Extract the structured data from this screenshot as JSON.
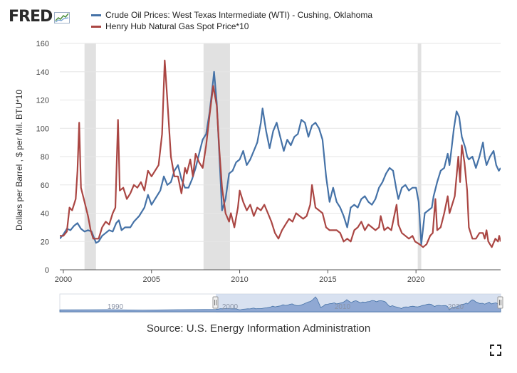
{
  "header": {
    "logo_text": "FRED",
    "logo_icon": "trend-graph-icon"
  },
  "legend": [
    {
      "label": "Crude Oil Prices: West Texas Intermediate (WTI) - Cushing, Oklahoma",
      "color": "#4572a7"
    },
    {
      "label": "Henry Hub Natural Gas Spot Price*10",
      "color": "#aa4643"
    }
  ],
  "source": "Source: U.S. Energy Information Administration",
  "navigator": {
    "tick_labels": [
      "1990",
      "2000",
      "2010",
      "2020"
    ]
  },
  "chart_data": {
    "type": "line",
    "title": "",
    "xlabel": "",
    "ylabel": "Dollars per Barrel , $ per Mil. BTU*10",
    "xlim": [
      1999.8,
      2024.8
    ],
    "ylim": [
      0,
      160
    ],
    "x_ticks": [
      2000,
      2005,
      2010,
      2015,
      2020
    ],
    "x_tick_labels": [
      "2000",
      "2005",
      "2010",
      "2015",
      "2020"
    ],
    "y_ticks": [
      0,
      20,
      40,
      60,
      80,
      100,
      120,
      140,
      160
    ],
    "y_tick_labels": [
      "0",
      "20",
      "40",
      "60",
      "80",
      "100",
      "120",
      "140",
      "160"
    ],
    "recessions": [
      [
        2001.2,
        2001.85
      ],
      [
        2007.95,
        2009.45
      ],
      [
        2020.1,
        2020.3
      ]
    ],
    "series": [
      {
        "name": "Crude Oil Prices: West Texas Intermediate (WTI) - Cushing, Oklahoma",
        "color": "#4572a7",
        "points": [
          [
            1999.8,
            22
          ],
          [
            2000.0,
            25
          ],
          [
            2000.2,
            29
          ],
          [
            2000.4,
            28
          ],
          [
            2000.6,
            31
          ],
          [
            2000.8,
            33
          ],
          [
            2001.0,
            29
          ],
          [
            2001.2,
            27
          ],
          [
            2001.4,
            28
          ],
          [
            2001.6,
            27
          ],
          [
            2001.85,
            19
          ],
          [
            2002.0,
            20
          ],
          [
            2002.2,
            24
          ],
          [
            2002.4,
            26
          ],
          [
            2002.6,
            28
          ],
          [
            2002.8,
            27
          ],
          [
            2003.0,
            33
          ],
          [
            2003.15,
            35
          ],
          [
            2003.3,
            28
          ],
          [
            2003.5,
            30
          ],
          [
            2003.8,
            30
          ],
          [
            2004.0,
            34
          ],
          [
            2004.3,
            38
          ],
          [
            2004.6,
            44
          ],
          [
            2004.8,
            53
          ],
          [
            2005.0,
            46
          ],
          [
            2005.3,
            52
          ],
          [
            2005.5,
            56
          ],
          [
            2005.7,
            66
          ],
          [
            2005.9,
            60
          ],
          [
            2006.1,
            62
          ],
          [
            2006.3,
            70
          ],
          [
            2006.5,
            74
          ],
          [
            2006.7,
            64
          ],
          [
            2006.9,
            58
          ],
          [
            2007.1,
            58
          ],
          [
            2007.3,
            64
          ],
          [
            2007.5,
            72
          ],
          [
            2007.7,
            82
          ],
          [
            2007.9,
            92
          ],
          [
            2008.1,
            96
          ],
          [
            2008.3,
            112
          ],
          [
            2008.5,
            134
          ],
          [
            2008.55,
            140
          ],
          [
            2008.7,
            118
          ],
          [
            2008.9,
            68
          ],
          [
            2009.0,
            42
          ],
          [
            2009.2,
            50
          ],
          [
            2009.4,
            68
          ],
          [
            2009.6,
            70
          ],
          [
            2009.8,
            76
          ],
          [
            2010.0,
            78
          ],
          [
            2010.2,
            84
          ],
          [
            2010.4,
            74
          ],
          [
            2010.6,
            78
          ],
          [
            2010.8,
            84
          ],
          [
            2011.0,
            90
          ],
          [
            2011.2,
            104
          ],
          [
            2011.3,
            114
          ],
          [
            2011.5,
            98
          ],
          [
            2011.7,
            86
          ],
          [
            2011.9,
            98
          ],
          [
            2012.1,
            104
          ],
          [
            2012.3,
            94
          ],
          [
            2012.5,
            84
          ],
          [
            2012.7,
            92
          ],
          [
            2012.9,
            88
          ],
          [
            2013.1,
            94
          ],
          [
            2013.3,
            96
          ],
          [
            2013.5,
            106
          ],
          [
            2013.7,
            104
          ],
          [
            2013.9,
            94
          ],
          [
            2014.1,
            102
          ],
          [
            2014.3,
            104
          ],
          [
            2014.5,
            100
          ],
          [
            2014.7,
            92
          ],
          [
            2014.9,
            66
          ],
          [
            2015.1,
            48
          ],
          [
            2015.3,
            58
          ],
          [
            2015.5,
            48
          ],
          [
            2015.7,
            44
          ],
          [
            2015.9,
            38
          ],
          [
            2016.1,
            30
          ],
          [
            2016.3,
            44
          ],
          [
            2016.5,
            46
          ],
          [
            2016.7,
            44
          ],
          [
            2016.9,
            50
          ],
          [
            2017.1,
            52
          ],
          [
            2017.3,
            48
          ],
          [
            2017.5,
            46
          ],
          [
            2017.7,
            50
          ],
          [
            2017.9,
            58
          ],
          [
            2018.1,
            62
          ],
          [
            2018.3,
            68
          ],
          [
            2018.5,
            72
          ],
          [
            2018.7,
            70
          ],
          [
            2018.9,
            56
          ],
          [
            2019.0,
            50
          ],
          [
            2019.2,
            58
          ],
          [
            2019.4,
            60
          ],
          [
            2019.6,
            56
          ],
          [
            2019.8,
            58
          ],
          [
            2020.0,
            58
          ],
          [
            2020.15,
            48
          ],
          [
            2020.3,
            18
          ],
          [
            2020.5,
            40
          ],
          [
            2020.7,
            42
          ],
          [
            2020.9,
            44
          ],
          [
            2021.0,
            52
          ],
          [
            2021.2,
            62
          ],
          [
            2021.4,
            70
          ],
          [
            2021.6,
            72
          ],
          [
            2021.8,
            82
          ],
          [
            2021.9,
            74
          ],
          [
            2022.0,
            84
          ],
          [
            2022.15,
            100
          ],
          [
            2022.3,
            112
          ],
          [
            2022.45,
            108
          ],
          [
            2022.6,
            94
          ],
          [
            2022.8,
            86
          ],
          [
            2022.9,
            80
          ],
          [
            2023.0,
            78
          ],
          [
            2023.2,
            80
          ],
          [
            2023.4,
            72
          ],
          [
            2023.6,
            80
          ],
          [
            2023.8,
            90
          ],
          [
            2023.9,
            80
          ],
          [
            2024.0,
            74
          ],
          [
            2024.2,
            80
          ],
          [
            2024.4,
            84
          ],
          [
            2024.55,
            74
          ],
          [
            2024.7,
            70
          ],
          [
            2024.8,
            72
          ]
        ]
      },
      {
        "name": "Henry Hub Natural Gas Spot Price*10",
        "color": "#aa4643",
        "points": [
          [
            1999.8,
            24
          ],
          [
            2000.0,
            24
          ],
          [
            2000.2,
            27
          ],
          [
            2000.35,
            44
          ],
          [
            2000.5,
            42
          ],
          [
            2000.7,
            50
          ],
          [
            2000.8,
            70
          ],
          [
            2000.9,
            104
          ],
          [
            2001.0,
            58
          ],
          [
            2001.2,
            48
          ],
          [
            2001.4,
            38
          ],
          [
            2001.55,
            28
          ],
          [
            2001.7,
            22
          ],
          [
            2001.85,
            22
          ],
          [
            2002.0,
            22
          ],
          [
            2002.2,
            30
          ],
          [
            2002.4,
            34
          ],
          [
            2002.6,
            32
          ],
          [
            2002.8,
            40
          ],
          [
            2002.95,
            44
          ],
          [
            2003.1,
            106
          ],
          [
            2003.2,
            56
          ],
          [
            2003.4,
            58
          ],
          [
            2003.6,
            50
          ],
          [
            2003.8,
            54
          ],
          [
            2004.0,
            60
          ],
          [
            2004.2,
            58
          ],
          [
            2004.4,
            62
          ],
          [
            2004.6,
            56
          ],
          [
            2004.8,
            70
          ],
          [
            2005.0,
            66
          ],
          [
            2005.2,
            70
          ],
          [
            2005.4,
            74
          ],
          [
            2005.6,
            96
          ],
          [
            2005.75,
            148
          ],
          [
            2005.9,
            120
          ],
          [
            2006.1,
            80
          ],
          [
            2006.3,
            66
          ],
          [
            2006.5,
            66
          ],
          [
            2006.7,
            54
          ],
          [
            2006.9,
            72
          ],
          [
            2007.0,
            68
          ],
          [
            2007.2,
            78
          ],
          [
            2007.35,
            66
          ],
          [
            2007.5,
            82
          ],
          [
            2007.7,
            76
          ],
          [
            2007.9,
            72
          ],
          [
            2008.1,
            88
          ],
          [
            2008.3,
            110
          ],
          [
            2008.5,
            130
          ],
          [
            2008.7,
            116
          ],
          [
            2008.85,
            84
          ],
          [
            2009.0,
            58
          ],
          [
            2009.2,
            40
          ],
          [
            2009.4,
            34
          ],
          [
            2009.5,
            40
          ],
          [
            2009.7,
            30
          ],
          [
            2009.9,
            44
          ],
          [
            2010.0,
            56
          ],
          [
            2010.2,
            48
          ],
          [
            2010.4,
            42
          ],
          [
            2010.6,
            46
          ],
          [
            2010.8,
            38
          ],
          [
            2011.0,
            44
          ],
          [
            2011.2,
            42
          ],
          [
            2011.4,
            46
          ],
          [
            2011.6,
            40
          ],
          [
            2011.8,
            34
          ],
          [
            2012.0,
            26
          ],
          [
            2012.2,
            22
          ],
          [
            2012.4,
            28
          ],
          [
            2012.6,
            32
          ],
          [
            2012.8,
            36
          ],
          [
            2013.0,
            34
          ],
          [
            2013.2,
            40
          ],
          [
            2013.4,
            38
          ],
          [
            2013.6,
            36
          ],
          [
            2013.8,
            38
          ],
          [
            2014.0,
            46
          ],
          [
            2014.1,
            60
          ],
          [
            2014.3,
            44
          ],
          [
            2014.5,
            42
          ],
          [
            2014.7,
            40
          ],
          [
            2014.9,
            30
          ],
          [
            2015.1,
            28
          ],
          [
            2015.3,
            28
          ],
          [
            2015.5,
            28
          ],
          [
            2015.7,
            26
          ],
          [
            2015.9,
            20
          ],
          [
            2016.1,
            22
          ],
          [
            2016.3,
            20
          ],
          [
            2016.5,
            28
          ],
          [
            2016.7,
            30
          ],
          [
            2016.9,
            34
          ],
          [
            2017.1,
            28
          ],
          [
            2017.3,
            32
          ],
          [
            2017.5,
            30
          ],
          [
            2017.7,
            28
          ],
          [
            2017.9,
            30
          ],
          [
            2018.0,
            38
          ],
          [
            2018.2,
            28
          ],
          [
            2018.4,
            30
          ],
          [
            2018.6,
            28
          ],
          [
            2018.8,
            40
          ],
          [
            2018.9,
            46
          ],
          [
            2019.0,
            32
          ],
          [
            2019.2,
            26
          ],
          [
            2019.4,
            24
          ],
          [
            2019.6,
            22
          ],
          [
            2019.8,
            24
          ],
          [
            2019.95,
            20
          ],
          [
            2020.2,
            18
          ],
          [
            2020.4,
            16
          ],
          [
            2020.6,
            18
          ],
          [
            2020.8,
            24
          ],
          [
            2020.95,
            26
          ],
          [
            2021.1,
            50
          ],
          [
            2021.2,
            28
          ],
          [
            2021.4,
            30
          ],
          [
            2021.6,
            40
          ],
          [
            2021.8,
            52
          ],
          [
            2021.9,
            40
          ],
          [
            2022.0,
            44
          ],
          [
            2022.2,
            52
          ],
          [
            2022.4,
            80
          ],
          [
            2022.5,
            62
          ],
          [
            2022.6,
            88
          ],
          [
            2022.75,
            76
          ],
          [
            2022.9,
            56
          ],
          [
            2023.0,
            30
          ],
          [
            2023.2,
            22
          ],
          [
            2023.4,
            22
          ],
          [
            2023.6,
            26
          ],
          [
            2023.8,
            26
          ],
          [
            2023.9,
            22
          ],
          [
            2024.0,
            28
          ],
          [
            2024.1,
            20
          ],
          [
            2024.3,
            16
          ],
          [
            2024.5,
            22
          ],
          [
            2024.65,
            20
          ],
          [
            2024.72,
            24
          ],
          [
            2024.8,
            20
          ]
        ]
      }
    ]
  }
}
